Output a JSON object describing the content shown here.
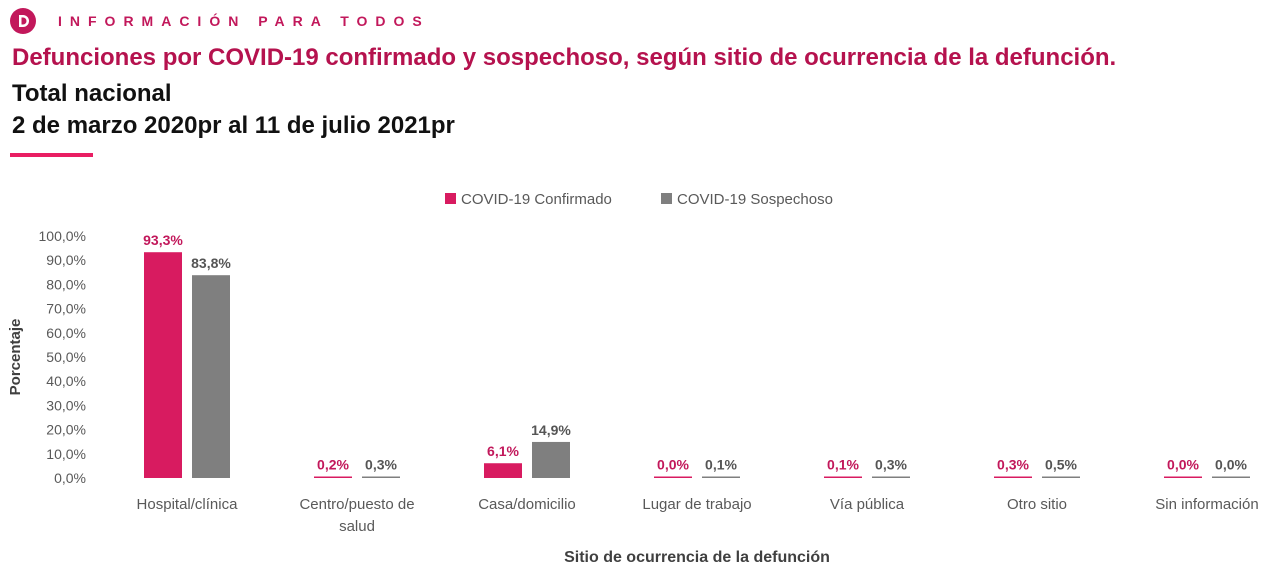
{
  "header": {
    "brand_text": "INFORMACIÓN PARA TODOS",
    "title": "Defunciones por COVID-19 confirmado y sospechoso, según sitio de ocurrencia de la defunción.",
    "subtitle_1": "Total nacional",
    "subtitle_2": "2 de marzo 2020pr al 11 de julio 2021pr"
  },
  "colors": {
    "brand": "#c2185b",
    "confirmado": "#d81b60",
    "sospechoso": "#7f7f7f"
  },
  "chart_data": {
    "type": "bar",
    "xlabel": "Sitio de ocurrencia de la defunción",
    "ylabel": "Porcentaje",
    "ylim": [
      0,
      100
    ],
    "yticks": [
      "0,0%",
      "10,0%",
      "20,0%",
      "30,0%",
      "40,0%",
      "50,0%",
      "60,0%",
      "70,0%",
      "80,0%",
      "90,0%",
      "100,0%"
    ],
    "legend_position": "top-center",
    "grid": false,
    "categories": [
      [
        "Hospital/clínica"
      ],
      [
        "Centro/puesto de",
        "salud"
      ],
      [
        "Casa/domicilio"
      ],
      [
        "Lugar de trabajo"
      ],
      [
        "Vía pública"
      ],
      [
        "Otro sitio"
      ],
      [
        "Sin información"
      ]
    ],
    "series": [
      {
        "name": "COVID-19 Confirmado",
        "values": [
          93.3,
          0.2,
          6.1,
          0.0,
          0.1,
          0.3,
          0.0
        ],
        "labels": [
          "93,3%",
          "0,2%",
          "6,1%",
          "0,0%",
          "0,1%",
          "0,3%",
          "0,0%"
        ]
      },
      {
        "name": "COVID-19 Sospechoso",
        "values": [
          83.8,
          0.3,
          14.9,
          0.1,
          0.3,
          0.5,
          0.0
        ],
        "labels": [
          "83,8%",
          "0,3%",
          "14,9%",
          "0,1%",
          "0,3%",
          "0,5%",
          "0,0%"
        ]
      }
    ]
  }
}
